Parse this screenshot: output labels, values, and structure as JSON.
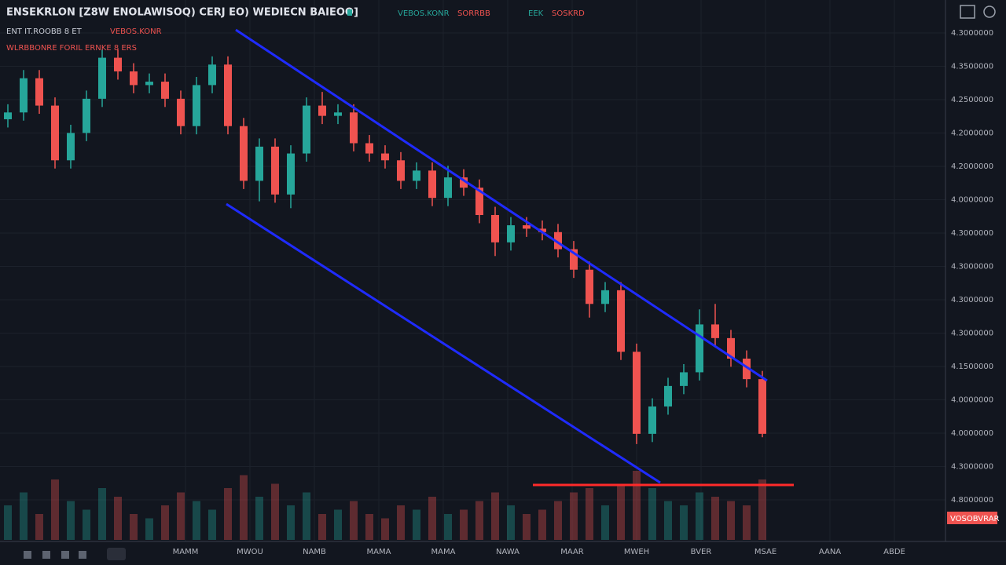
{
  "header": {
    "title": "ENSEKRLON [Z8W ENOLAWISOQ) CERJ EO) WEDIECN BAIEOO]",
    "quote_up": "VEBOS.KONR",
    "quote_down": "SORRBB",
    "quote_mid": "EEK",
    "quote_last": "SOSKRD",
    "line2": "ENT IT.ROOBB 8 ET",
    "line2_red": "VEBOS.KONR",
    "line3": "WLRBBONRE FORIL ERNKE 8 ERS"
  },
  "chart_data": {
    "type": "candlestick",
    "ylim": [
      0,
      700
    ],
    "candles": [
      [
        560,
        582,
        548,
        570
      ],
      [
        570,
        632,
        558,
        620
      ],
      [
        620,
        632,
        568,
        580
      ],
      [
        580,
        592,
        488,
        500
      ],
      [
        500,
        552,
        488,
        540
      ],
      [
        540,
        602,
        528,
        590
      ],
      [
        590,
        662,
        578,
        650
      ],
      [
        650,
        662,
        618,
        630
      ],
      [
        630,
        642,
        598,
        610
      ],
      [
        610,
        627,
        598,
        615
      ],
      [
        615,
        627,
        578,
        590
      ],
      [
        590,
        602,
        538,
        550
      ],
      [
        550,
        622,
        538,
        610
      ],
      [
        610,
        652,
        598,
        640
      ],
      [
        640,
        652,
        538,
        550
      ],
      [
        550,
        562,
        458,
        470
      ],
      [
        470,
        532,
        440,
        520
      ],
      [
        520,
        532,
        438,
        450
      ],
      [
        450,
        522,
        430,
        510
      ],
      [
        510,
        592,
        498,
        580
      ],
      [
        580,
        600,
        553,
        565
      ],
      [
        565,
        582,
        553,
        570
      ],
      [
        570,
        582,
        513,
        525
      ],
      [
        525,
        537,
        498,
        510
      ],
      [
        510,
        522,
        488,
        500
      ],
      [
        500,
        512,
        458,
        470
      ],
      [
        470,
        497,
        458,
        485
      ],
      [
        485,
        497,
        433,
        445
      ],
      [
        445,
        492,
        433,
        475
      ],
      [
        475,
        487,
        448,
        460
      ],
      [
        460,
        472,
        408,
        420
      ],
      [
        420,
        432,
        360,
        380
      ],
      [
        380,
        417,
        368,
        405
      ],
      [
        405,
        417,
        388,
        400
      ],
      [
        400,
        412,
        383,
        395
      ],
      [
        395,
        407,
        358,
        370
      ],
      [
        370,
        382,
        328,
        340
      ],
      [
        340,
        352,
        270,
        290
      ],
      [
        290,
        322,
        278,
        310
      ],
      [
        310,
        322,
        208,
        220
      ],
      [
        220,
        232,
        85,
        100
      ],
      [
        100,
        152,
        88,
        140
      ],
      [
        140,
        182,
        128,
        170
      ],
      [
        170,
        202,
        158,
        190
      ],
      [
        190,
        282,
        178,
        260
      ],
      [
        260,
        290,
        228,
        240
      ],
      [
        240,
        252,
        198,
        210
      ],
      [
        210,
        222,
        168,
        180
      ],
      [
        180,
        192,
        95,
        100
      ]
    ],
    "volumes": [
      40,
      55,
      30,
      70,
      45,
      35,
      60,
      50,
      30,
      25,
      40,
      55,
      45,
      35,
      60,
      75,
      50,
      65,
      40,
      55,
      30,
      35,
      45,
      30,
      25,
      40,
      35,
      50,
      30,
      35,
      45,
      55,
      40,
      30,
      35,
      45,
      55,
      60,
      40,
      65,
      80,
      60,
      45,
      40,
      55,
      50,
      45,
      40,
      70
    ],
    "up_color": "#26a69a",
    "down_color": "#ef5350",
    "price_labels": [
      "4.3000000",
      "4.3500000",
      "4.2500000",
      "4.2000000",
      "4.2000000",
      "4.0000000",
      "4.3000000",
      "4.3000000",
      "4.3000000",
      "4.3000000",
      "4.1500000",
      "4.0000000",
      "4.0000000",
      "4.3000000",
      "4.8000000"
    ],
    "time_labels": [
      "MAMM",
      "MWOU",
      "NAMB",
      "MAMA",
      "MAMA",
      "NAWA",
      "MAAR",
      "MWEH",
      "BVER",
      "MSAE",
      "AANA",
      "ABDE"
    ],
    "last_price": "VOSOBVRAR"
  }
}
